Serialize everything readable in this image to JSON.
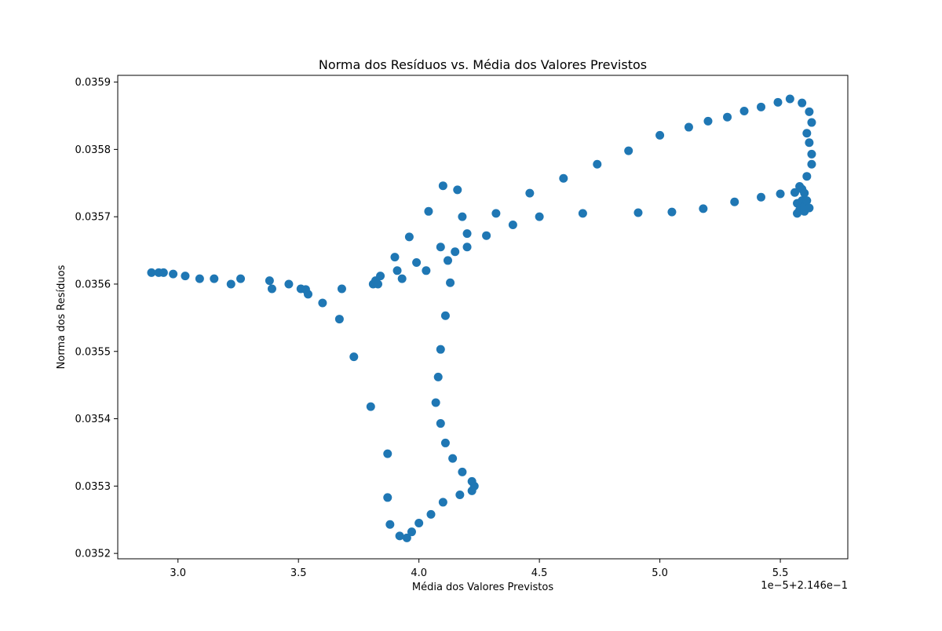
{
  "chart_data": {
    "type": "scatter",
    "title": "Norma dos Resíduos vs. Média dos Valores Previstos",
    "xlabel": "Média dos Valores Previstos",
    "ylabel": "Norma dos Resíduos",
    "x_offset_label": "1e−5+2.146e−1",
    "xlim": [
      2.75,
      5.78
    ],
    "ylim": [
      0.035192,
      0.03591
    ],
    "x_ticks": [
      3.0,
      3.5,
      4.0,
      4.5,
      5.0,
      5.5
    ],
    "x_tick_labels": [
      "3.0",
      "3.5",
      "4.0",
      "4.5",
      "5.0",
      "5.5"
    ],
    "y_ticks": [
      0.0352,
      0.0353,
      0.0354,
      0.0355,
      0.0356,
      0.0357,
      0.0358,
      0.0359
    ],
    "y_tick_labels": [
      "0.0352",
      "0.0353",
      "0.0354",
      "0.0355",
      "0.0356",
      "0.0357",
      "0.0358",
      "0.0359"
    ],
    "grid": false,
    "marker_color": "#1f77b4",
    "points": [
      {
        "x": 2.89,
        "y": 0.035617
      },
      {
        "x": 2.92,
        "y": 0.035617
      },
      {
        "x": 2.94,
        "y": 0.035617
      },
      {
        "x": 2.98,
        "y": 0.035615
      },
      {
        "x": 3.03,
        "y": 0.035612
      },
      {
        "x": 3.09,
        "y": 0.035608
      },
      {
        "x": 3.15,
        "y": 0.035608
      },
      {
        "x": 3.22,
        "y": 0.0356
      },
      {
        "x": 3.26,
        "y": 0.035608
      },
      {
        "x": 3.38,
        "y": 0.035605
      },
      {
        "x": 3.39,
        "y": 0.035593
      },
      {
        "x": 3.46,
        "y": 0.0356
      },
      {
        "x": 3.51,
        "y": 0.035593
      },
      {
        "x": 3.53,
        "y": 0.035592
      },
      {
        "x": 3.54,
        "y": 0.035585
      },
      {
        "x": 3.6,
        "y": 0.035572
      },
      {
        "x": 3.67,
        "y": 0.035548
      },
      {
        "x": 3.68,
        "y": 0.035593
      },
      {
        "x": 3.73,
        "y": 0.035492
      },
      {
        "x": 3.8,
        "y": 0.035418
      },
      {
        "x": 3.81,
        "y": 0.0356
      },
      {
        "x": 3.82,
        "y": 0.035605
      },
      {
        "x": 3.83,
        "y": 0.0356
      },
      {
        "x": 3.84,
        "y": 0.035612
      },
      {
        "x": 3.87,
        "y": 0.035348
      },
      {
        "x": 3.87,
        "y": 0.035283
      },
      {
        "x": 3.88,
        "y": 0.035243
      },
      {
        "x": 3.9,
        "y": 0.03564
      },
      {
        "x": 3.91,
        "y": 0.03562
      },
      {
        "x": 3.92,
        "y": 0.035226
      },
      {
        "x": 3.93,
        "y": 0.035608
      },
      {
        "x": 3.95,
        "y": 0.035223
      },
      {
        "x": 3.96,
        "y": 0.03567
      },
      {
        "x": 3.97,
        "y": 0.035232
      },
      {
        "x": 3.99,
        "y": 0.035632
      },
      {
        "x": 4.0,
        "y": 0.035245
      },
      {
        "x": 4.03,
        "y": 0.03562
      },
      {
        "x": 4.04,
        "y": 0.035708
      },
      {
        "x": 4.05,
        "y": 0.035258
      },
      {
        "x": 4.07,
        "y": 0.035424
      },
      {
        "x": 4.08,
        "y": 0.035462
      },
      {
        "x": 4.09,
        "y": 0.035503
      },
      {
        "x": 4.09,
        "y": 0.035393
      },
      {
        "x": 4.09,
        "y": 0.035655
      },
      {
        "x": 4.1,
        "y": 0.035746
      },
      {
        "x": 4.1,
        "y": 0.035276
      },
      {
        "x": 4.11,
        "y": 0.035553
      },
      {
        "x": 4.11,
        "y": 0.035364
      },
      {
        "x": 4.12,
        "y": 0.035635
      },
      {
        "x": 4.13,
        "y": 0.035602
      },
      {
        "x": 4.14,
        "y": 0.035341
      },
      {
        "x": 4.15,
        "y": 0.035648
      },
      {
        "x": 4.16,
        "y": 0.03574
      },
      {
        "x": 4.17,
        "y": 0.035287
      },
      {
        "x": 4.18,
        "y": 0.035321
      },
      {
        "x": 4.18,
        "y": 0.0357
      },
      {
        "x": 4.2,
        "y": 0.035655
      },
      {
        "x": 4.2,
        "y": 0.035675
      },
      {
        "x": 4.22,
        "y": 0.035307
      },
      {
        "x": 4.22,
        "y": 0.035293
      },
      {
        "x": 4.23,
        "y": 0.0353
      },
      {
        "x": 4.28,
        "y": 0.035672
      },
      {
        "x": 4.32,
        "y": 0.035705
      },
      {
        "x": 4.39,
        "y": 0.035688
      },
      {
        "x": 4.46,
        "y": 0.035735
      },
      {
        "x": 4.5,
        "y": 0.0357
      },
      {
        "x": 4.6,
        "y": 0.035757
      },
      {
        "x": 4.68,
        "y": 0.035705
      },
      {
        "x": 4.74,
        "y": 0.035778
      },
      {
        "x": 4.87,
        "y": 0.035798
      },
      {
        "x": 4.91,
        "y": 0.035706
      },
      {
        "x": 5.0,
        "y": 0.035821
      },
      {
        "x": 5.05,
        "y": 0.035707
      },
      {
        "x": 5.12,
        "y": 0.035833
      },
      {
        "x": 5.18,
        "y": 0.035712
      },
      {
        "x": 5.2,
        "y": 0.035842
      },
      {
        "x": 5.28,
        "y": 0.035848
      },
      {
        "x": 5.31,
        "y": 0.035722
      },
      {
        "x": 5.35,
        "y": 0.035857
      },
      {
        "x": 5.42,
        "y": 0.035863
      },
      {
        "x": 5.42,
        "y": 0.035729
      },
      {
        "x": 5.49,
        "y": 0.03587
      },
      {
        "x": 5.5,
        "y": 0.035734
      },
      {
        "x": 5.54,
        "y": 0.035875
      },
      {
        "x": 5.56,
        "y": 0.035736
      },
      {
        "x": 5.57,
        "y": 0.03572
      },
      {
        "x": 5.57,
        "y": 0.035705
      },
      {
        "x": 5.58,
        "y": 0.035745
      },
      {
        "x": 5.58,
        "y": 0.03571
      },
      {
        "x": 5.59,
        "y": 0.035869
      },
      {
        "x": 5.59,
        "y": 0.035741
      },
      {
        "x": 5.59,
        "y": 0.035724
      },
      {
        "x": 5.6,
        "y": 0.035735
      },
      {
        "x": 5.6,
        "y": 0.035708
      },
      {
        "x": 5.6,
        "y": 0.035715
      },
      {
        "x": 5.61,
        "y": 0.03576
      },
      {
        "x": 5.61,
        "y": 0.035724
      },
      {
        "x": 5.61,
        "y": 0.035824
      },
      {
        "x": 5.62,
        "y": 0.03581
      },
      {
        "x": 5.62,
        "y": 0.035856
      },
      {
        "x": 5.62,
        "y": 0.035713
      },
      {
        "x": 5.63,
        "y": 0.03584
      },
      {
        "x": 5.63,
        "y": 0.035778
      },
      {
        "x": 5.63,
        "y": 0.035793
      }
    ]
  }
}
